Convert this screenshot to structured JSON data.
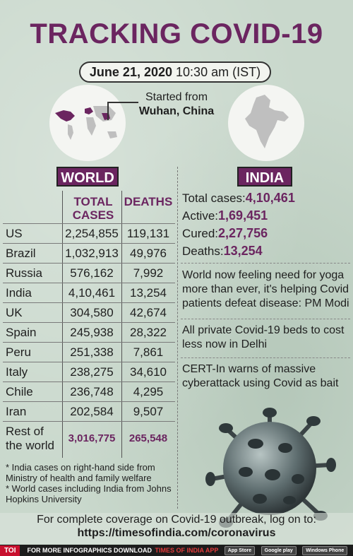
{
  "title": "TRACKING COVID-19",
  "date": {
    "bold": "June 21, 2020",
    "time": "10:30 am (IST)"
  },
  "origin": {
    "line1": "Started from",
    "city": "Wuhan, China"
  },
  "world": {
    "tab": "WORLD",
    "headers": {
      "cases_line1": "TOTAL",
      "cases_line2": "CASES",
      "deaths": "DEATHS"
    },
    "rows": [
      {
        "country": "US",
        "cases": "2,254,855",
        "deaths": "119,131"
      },
      {
        "country": "Brazil",
        "cases": "1,032,913",
        "deaths": "49,976"
      },
      {
        "country": "Russia",
        "cases": "576,162",
        "deaths": "7,992"
      },
      {
        "country": "India",
        "cases": "4,10,461",
        "deaths": "13,254"
      },
      {
        "country": "UK",
        "cases": "304,580",
        "deaths": "42,674"
      },
      {
        "country": "Spain",
        "cases": "245,938",
        "deaths": "28,322"
      },
      {
        "country": "Peru",
        "cases": "251,338",
        "deaths": "7,861"
      },
      {
        "country": "Italy",
        "cases": "238,275",
        "deaths": "34,610"
      },
      {
        "country": "Chile",
        "cases": "236,748",
        "deaths": "4,295"
      },
      {
        "country": "Iran",
        "cases": "202,584",
        "deaths": "9,507"
      }
    ],
    "rest": {
      "line1": "Rest of",
      "line2": "the world",
      "cases": "3,016,775",
      "deaths": "265,548"
    }
  },
  "india": {
    "tab": "INDIA",
    "total_label": "Total cases:",
    "total": "4,10,461",
    "active_label": "Active:",
    "active": "1,69,451",
    "cured_label": "Cured:",
    "cured": "2,27,756",
    "deaths_label": "Deaths:",
    "deaths": "13,254"
  },
  "news": [
    "World now feeling need for yoga more than ever, it's helping Covid patients defeat disease: PM Modi",
    "All private Covid-19 beds to cost less now in Delhi",
    "CERT-In warns of massive cyberattack using Covid as bait"
  ],
  "notes": [
    "* India cases on right-hand side from Ministry of health and family welfare",
    "* World cases including India from Johns Hopkins University"
  ],
  "footer": {
    "line1": "For complete coverage on Covid-19 outbreak, log on to:",
    "url": "https://timesofindia.com/coronavirus"
  },
  "strip": {
    "logo": "TOI",
    "text": "FOR MORE  INFOGRAPHICS DOWNLOAD",
    "app": "TIMES OF INDIA  APP",
    "badges": [
      "App Store",
      "Google play",
      "Windows Phone"
    ]
  },
  "colors": {
    "accent": "#6b2560",
    "background": "#c9d8cc"
  }
}
